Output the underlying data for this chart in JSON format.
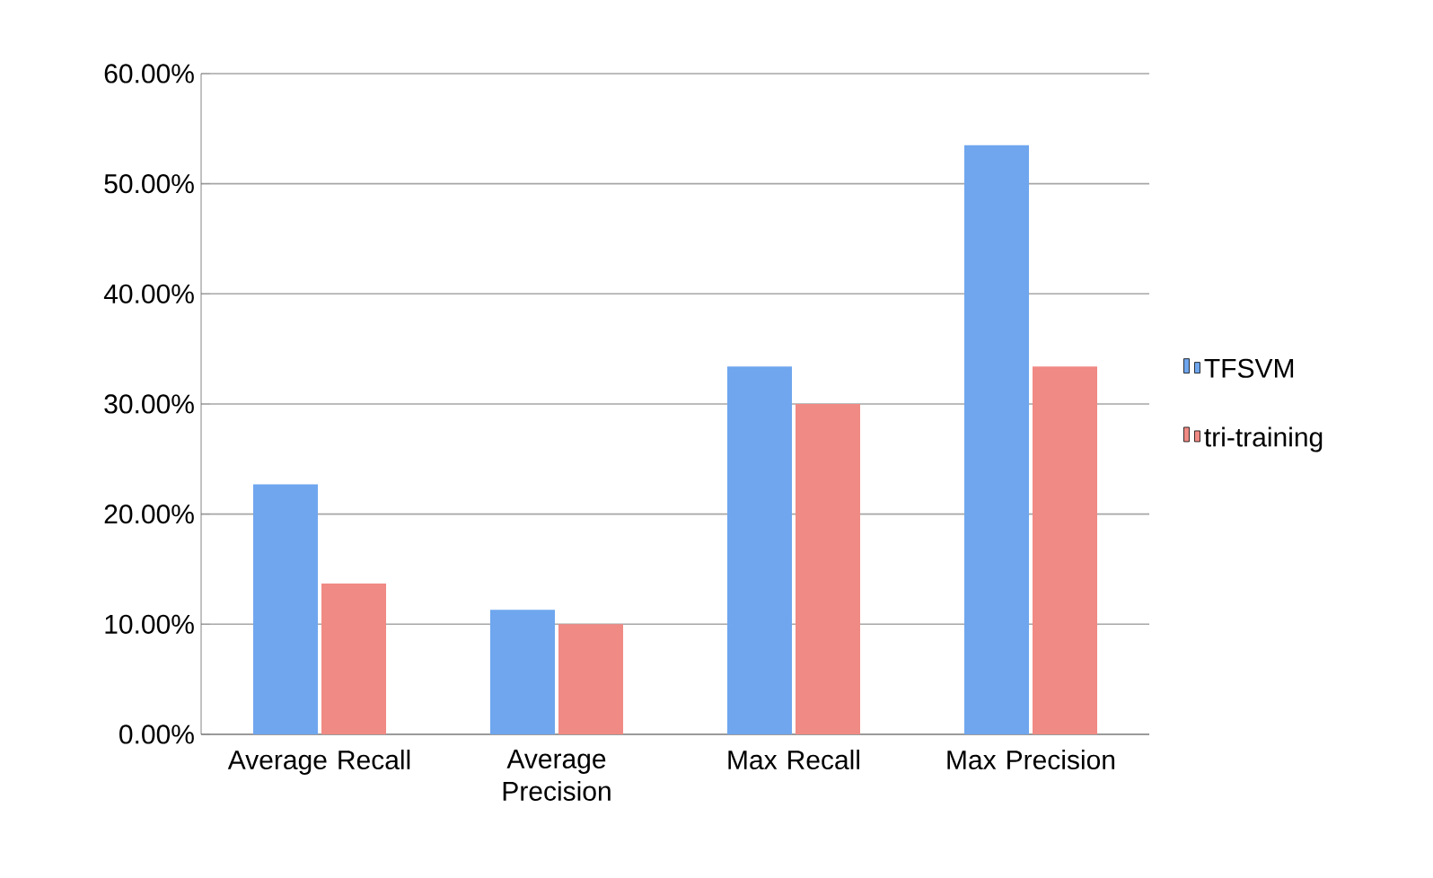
{
  "chart_data": {
    "type": "bar",
    "categories": [
      "Average Recall",
      "Average Precision",
      "Max Recall",
      "Max Precision"
    ],
    "series": [
      {
        "name": "TFSVM",
        "color": "#6fa6ee",
        "values": [
          22.7,
          11.3,
          33.4,
          53.5
        ]
      },
      {
        "name": "tri-training",
        "color": "#f08a84",
        "values": [
          13.7,
          10.0,
          30.0,
          33.4
        ]
      }
    ],
    "ylim": [
      0,
      60
    ],
    "yticks": [
      {
        "value": 0,
        "label": "0.00%"
      },
      {
        "value": 10,
        "label": "10.00%"
      },
      {
        "value": 20,
        "label": "20.00%"
      },
      {
        "value": 30,
        "label": "30.00%"
      },
      {
        "value": 40,
        "label": "40.00%"
      },
      {
        "value": 50,
        "label": "50.00%"
      },
      {
        "value": 60,
        "label": "60.00%"
      }
    ],
    "grid": "y",
    "legend": "right"
  }
}
